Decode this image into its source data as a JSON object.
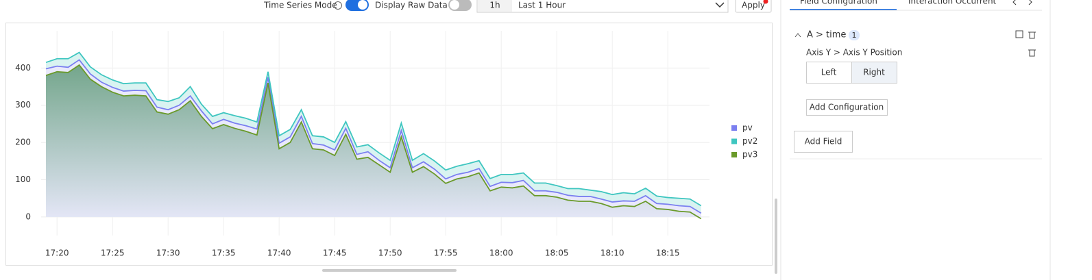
{
  "toolbar": {
    "time_series_mode": "Time Series Mode",
    "display_raw_data": "Display Raw Data",
    "range_short": "1h",
    "range": "Last 1 Hour",
    "apply": "Apply"
  },
  "panel": {
    "tabs": [
      "Field Configuration",
      "Interaction Occurrent"
    ],
    "field": "A > time",
    "field_count": "1",
    "setting": "Axis Y > Axis Y Position",
    "options": [
      "Left",
      "Right"
    ],
    "selected": "Right",
    "add_configuration": "Add Configuration",
    "add_field": "Add Field"
  },
  "chart_data": {
    "type": "line",
    "categories": [
      null,
      "17:20",
      null,
      null,
      null,
      null,
      "17:25",
      null,
      null,
      null,
      null,
      "17:30",
      null,
      null,
      null,
      null,
      "17:35",
      null,
      null,
      null,
      null,
      "17:40",
      null,
      null,
      null,
      null,
      "17:45",
      null,
      null,
      null,
      null,
      "17:50",
      null,
      null,
      null,
      null,
      "17:55",
      null,
      null,
      null,
      null,
      "18:00",
      null,
      null,
      null,
      null,
      "18:05",
      null,
      null,
      null,
      null,
      "18:10",
      null,
      null,
      null,
      null,
      "18:15",
      null,
      null,
      null
    ],
    "series": [
      {
        "name": "pv",
        "color": "#7b7ff0",
        "values": [
          398,
          405,
          402,
          422,
          384,
          362,
          348,
          338,
          340,
          339,
          295,
          288,
          300,
          325,
          285,
          250,
          262,
          252,
          245,
          236,
          375,
          198,
          215,
          270,
          197,
          193,
          180,
          238,
          168,
          175,
          152,
          132,
          232,
          132,
          148,
          128,
          102,
          114,
          120,
          130,
          82,
          93,
          92,
          98,
          70,
          70,
          66,
          58,
          55,
          55,
          48,
          40,
          43,
          42,
          57,
          36,
          34,
          30,
          28,
          10
        ]
      },
      {
        "name": "pv2",
        "color": "#3fc6c0",
        "values": [
          415,
          425,
          425,
          442,
          403,
          382,
          368,
          358,
          360,
          360,
          315,
          310,
          320,
          350,
          303,
          270,
          280,
          272,
          265,
          255,
          390,
          218,
          235,
          288,
          218,
          215,
          200,
          256,
          188,
          194,
          172,
          152,
          252,
          152,
          170,
          150,
          126,
          136,
          143,
          151,
          103,
          114,
          114,
          118,
          91,
          91,
          84,
          76,
          76,
          72,
          68,
          60,
          65,
          62,
          77,
          56,
          52,
          50,
          48,
          30
        ]
      },
      {
        "name": "pv3",
        "color": "#6a9a2a",
        "values": [
          380,
          390,
          388,
          408,
          370,
          350,
          335,
          325,
          327,
          325,
          282,
          276,
          288,
          312,
          270,
          237,
          248,
          238,
          230,
          220,
          360,
          183,
          200,
          255,
          183,
          180,
          165,
          222,
          155,
          160,
          140,
          120,
          215,
          120,
          135,
          115,
          90,
          102,
          108,
          118,
          70,
          80,
          78,
          83,
          57,
          57,
          53,
          45,
          42,
          42,
          36,
          26,
          30,
          28,
          42,
          22,
          20,
          15,
          13,
          -5
        ]
      }
    ],
    "ylim": [
      -50,
      500
    ],
    "yticks": [
      0,
      100,
      200,
      300,
      400
    ],
    "grid": true,
    "legend": "right"
  }
}
